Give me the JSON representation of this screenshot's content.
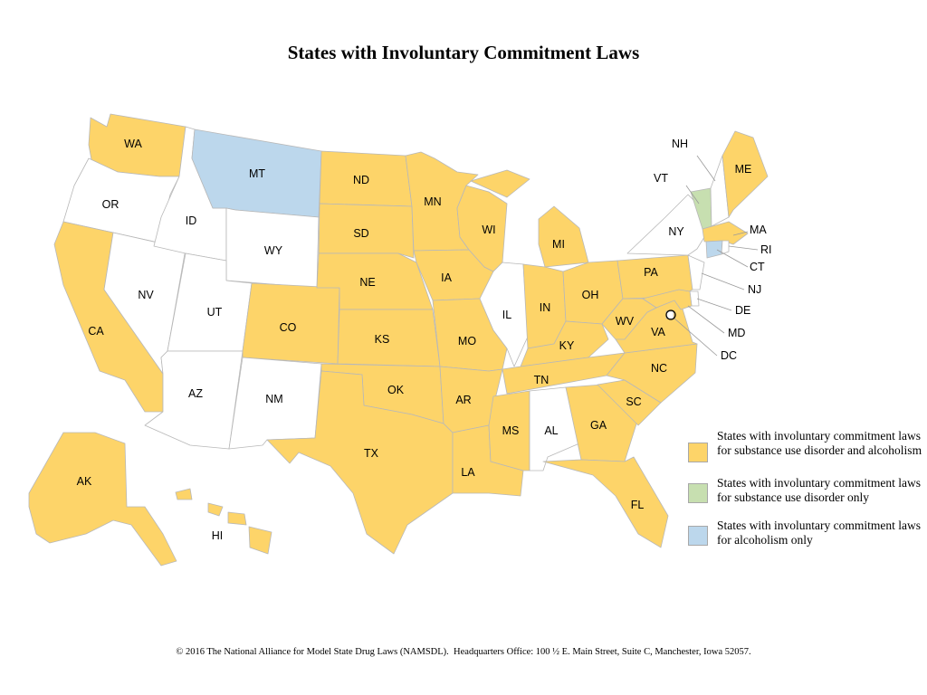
{
  "title": "States with Involuntary Commitment Laws",
  "colors": {
    "both": "#fdd469",
    "sud_only": "#c7dfb0",
    "alcohol_only": "#bcd7ec",
    "none": "#ffffff"
  },
  "legend": [
    {
      "category": "both",
      "text": "States with involuntary commitment laws for substance use disorder and alcoholism"
    },
    {
      "category": "sud_only",
      "text": "States with involuntary commitment laws for substance use disorder only"
    },
    {
      "category": "alcohol_only",
      "text": "States with involuntary commitment laws for alcoholism only"
    }
  ],
  "states": {
    "WA": "both",
    "OR": "none",
    "CA": "both",
    "NV": "none",
    "ID": "none",
    "MT": "alcohol_only",
    "WY": "none",
    "UT": "none",
    "AZ": "none",
    "CO": "both",
    "NM": "none",
    "ND": "both",
    "SD": "both",
    "NE": "both",
    "KS": "both",
    "OK": "both",
    "TX": "both",
    "MN": "both",
    "IA": "both",
    "MO": "both",
    "AR": "both",
    "LA": "both",
    "WI": "both",
    "IL": "none",
    "MI": "both",
    "IN": "both",
    "OH": "both",
    "KY": "both",
    "TN": "both",
    "MS": "both",
    "AL": "none",
    "GA": "both",
    "FL": "both",
    "SC": "both",
    "NC": "both",
    "VA": "both",
    "WV": "both",
    "PA": "both",
    "NY": "none",
    "VT": "sud_only",
    "NH": "none",
    "ME": "both",
    "MA": "both",
    "RI": "none",
    "CT": "alcohol_only",
    "NJ": "none",
    "DE": "none",
    "MD": "both",
    "DC": "none",
    "AK": "both",
    "HI": "both"
  },
  "footer": "© 2016 The National Alliance for Model State Drug Laws (NAMSDL).  Headquarters Office: 100 ½ E. Main Street, Suite C, Manchester, Iowa 52057."
}
